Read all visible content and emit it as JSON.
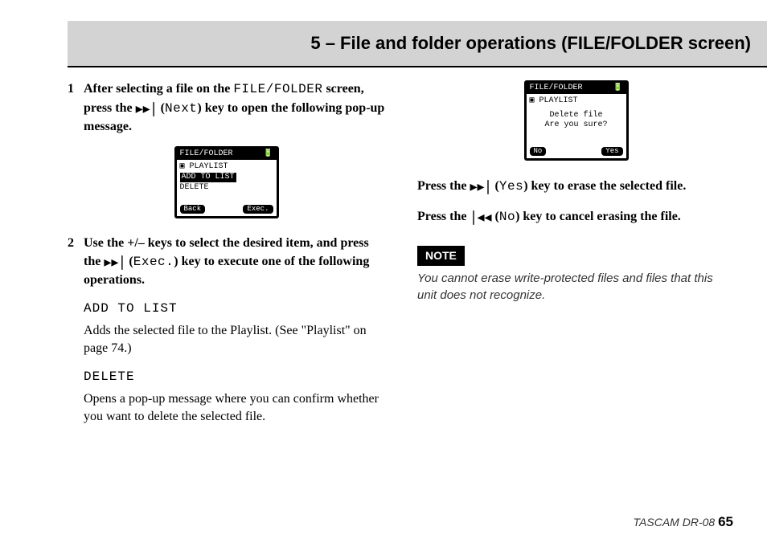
{
  "header": {
    "title": "5 – File and folder operations (FILE/FOLDER screen)",
    "band_color": "#d3d3d3"
  },
  "left": {
    "step1_num": "1",
    "step1_a": "After selecting a file on the ",
    "step1_mono1": "FILE/FOLDER",
    "step1_b": " screen, press the ",
    "step1_icon": "▸▸∣",
    "step1_c": " (",
    "step1_mono2": "Next",
    "step1_d": ") key to open the following pop-up message.",
    "lcd1": {
      "title_left": "FILE/FOLDER",
      "title_right": "🔋",
      "row1": "▣ PLAYLIST",
      "row2_inv": "ADD TO LIST",
      "row3": "DELETE",
      "btn_left": "Back",
      "btn_right": "Exec."
    },
    "step2_num": "2",
    "step2_a": "Use the +/– keys to select the desired item, and press the ",
    "step2_icon": "▸▸∣",
    "step2_b": " (",
    "step2_mono": "Exec.",
    "step2_c": ") key to execute one of the following operations.",
    "addtolist_label": "ADD TO LIST",
    "addtolist_text": "Adds the selected file to the Playlist. (See \"Playlist\" on page 74.)",
    "delete_label": "DELETE",
    "delete_text": "Opens a pop-up message where you can confirm whether you want to delete the selected file."
  },
  "right": {
    "lcd2": {
      "title_left": "FILE/FOLDER",
      "title_right": "🔋",
      "row1": "▣ PLAYLIST",
      "center1": "Delete file",
      "center2": "Are you sure?",
      "btn_left": "No",
      "btn_right": "Yes"
    },
    "p1_a": "Press the ",
    "p1_icon": "▸▸∣",
    "p1_b": " (",
    "p1_mono": "Yes",
    "p1_c": ") key to erase the selected file.",
    "p2_a": "Press the ",
    "p2_icon": "∣◂◂",
    "p2_b": " (",
    "p2_mono": "No",
    "p2_c": ") key to cancel erasing the file.",
    "note_label": "NOTE",
    "note_text": "You cannot erase write-protected files and files that this unit does not recognize."
  },
  "footer": {
    "product": "TASCAM  DR-08 ",
    "page": "65"
  }
}
